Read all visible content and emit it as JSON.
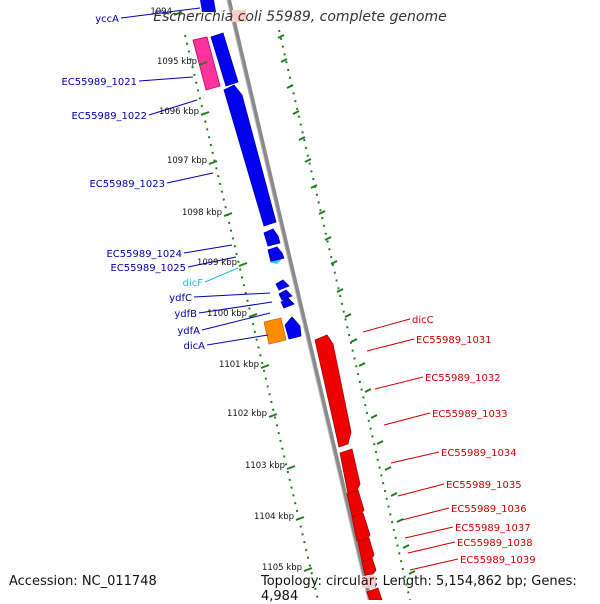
{
  "title": "Escherichia coli 55989, complete genome",
  "footer": {
    "accession": "Accession: NC_011748",
    "summary": "Topology: circular; Length: 5,154,862 bp; Genes: 4,984"
  },
  "colors": {
    "forward_cds": "#0000ee",
    "reverse_cds": "#ee0000",
    "pseudo": "#ff3399",
    "orange": "#ff8c00",
    "rna": "#33ccee",
    "tick": "#1e7e1e",
    "backbone": "#888888"
  },
  "ticks": [
    "1094",
    "1095 kbp",
    "1096 kbp",
    "1097 kbp",
    "1098 kbp",
    "1099 kbp",
    "1100 kbp",
    "1101 kbp",
    "1102 kbp",
    "1103 kbp",
    "1104 kbp",
    "1105 kbp"
  ],
  "left_labels": [
    {
      "text": "yccA",
      "color": "#0000aa"
    },
    {
      "text": "EC55989_1021",
      "color": "#0000aa"
    },
    {
      "text": "EC55989_1022",
      "color": "#0000aa"
    },
    {
      "text": "EC55989_1023",
      "color": "#0000aa"
    },
    {
      "text": "EC55989_1024",
      "color": "#0000aa"
    },
    {
      "text": "EC55989_1025",
      "color": "#0000aa"
    },
    {
      "text": "dicF",
      "color": "#22bbdd"
    },
    {
      "text": "ydfC",
      "color": "#0000aa"
    },
    {
      "text": "ydfB",
      "color": "#0000aa"
    },
    {
      "text": "ydfA",
      "color": "#0000aa"
    },
    {
      "text": "dicA",
      "color": "#0000aa"
    }
  ],
  "right_labels": [
    {
      "text": "dicC",
      "color": "#cc0000"
    },
    {
      "text": "EC55989_1031",
      "color": "#cc0000"
    },
    {
      "text": "EC55989_1032",
      "color": "#cc0000"
    },
    {
      "text": "EC55989_1033",
      "color": "#cc0000"
    },
    {
      "text": "EC55989_1034",
      "color": "#cc0000"
    },
    {
      "text": "EC55989_1035",
      "color": "#cc0000"
    },
    {
      "text": "EC55989_1036",
      "color": "#cc0000"
    },
    {
      "text": "EC55989_1037",
      "color": "#cc0000"
    },
    {
      "text": "EC55989_1038",
      "color": "#cc0000"
    },
    {
      "text": "EC55989_1039",
      "color": "#cc0000"
    }
  ]
}
